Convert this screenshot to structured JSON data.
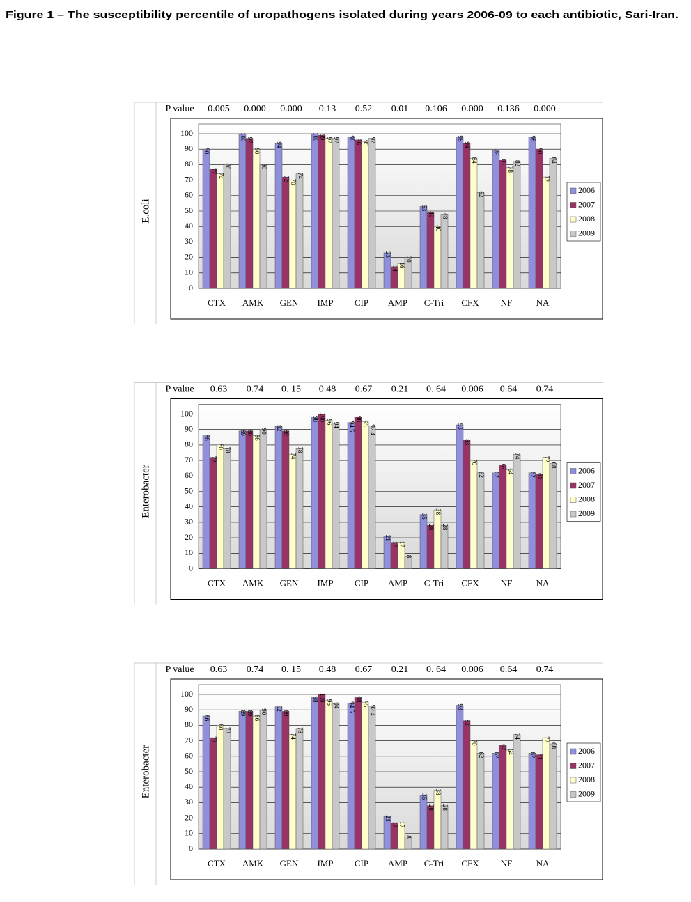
{
  "figure_title": "Figure 1 – The susceptibility percentile of uropathogens isolated during years 2006-09 to each antibiotic, Sari-Iran.",
  "chart_data": [
    {
      "type": "bar",
      "ylabel": "E.coli",
      "p_value_label": "P value",
      "p_values": [
        "0.005",
        "0.000",
        "0.000",
        "0.13",
        "0.52",
        "0.01",
        "0.106",
        "0.000",
        "0.136",
        "0.000"
      ],
      "categories": [
        "CTX",
        "AMK",
        "GEN",
        "IMP",
        "CIP",
        "AMP",
        "C-Tri",
        "CFX",
        "NF",
        "NA"
      ],
      "series": [
        {
          "name": "2006",
          "color": "#8f8fdb",
          "values": [
            90,
            100,
            94,
            100,
            98,
            23,
            53,
            98,
            89,
            98
          ]
        },
        {
          "name": "2007",
          "color": "#993366",
          "values": [
            77,
            97,
            72,
            99,
            96,
            14,
            49,
            94,
            83,
            90
          ]
        },
        {
          "name": "2008",
          "color": "#ffffcc",
          "values": [
            74,
            90,
            70,
            97,
            95,
            16,
            40,
            84,
            78,
            72
          ]
        },
        {
          "name": "2009",
          "color": "#c8c8c8",
          "values": [
            80,
            80,
            74,
            97,
            97,
            20,
            48,
            62,
            82,
            84
          ]
        }
      ],
      "ylim": [
        0,
        100
      ],
      "yticks": [
        0,
        10,
        20,
        30,
        40,
        50,
        60,
        70,
        80,
        90,
        100
      ],
      "grid": true,
      "legend": "right"
    },
    {
      "type": "bar",
      "ylabel": "Enterobacter",
      "p_value_label": "P value",
      "p_values": [
        "0.63",
        "0.74",
        "0. 15",
        "0.48",
        "0.67",
        "0.21",
        "0. 64",
        "0.006",
        "0.64",
        "0.74"
      ],
      "categories": [
        "CTX",
        "AMK",
        "GEN",
        "IMP",
        "CIP",
        "AMP",
        "C-Tri",
        "CFX",
        "NF",
        "NA"
      ],
      "series": [
        {
          "name": "2006",
          "color": "#8f8fdb",
          "values": [
            86,
            89,
            92,
            98,
            94.5,
            21,
            35,
            93,
            62,
            62
          ]
        },
        {
          "name": "2007",
          "color": "#993366",
          "values": [
            72,
            89,
            89,
            100,
            98,
            17,
            28,
            83,
            67,
            61
          ]
        },
        {
          "name": "2008",
          "color": "#ffffcc",
          "values": [
            80,
            86,
            74,
            96,
            95,
            17,
            38,
            70,
            64,
            72
          ]
        },
        {
          "name": "2009",
          "color": "#c8c8c8",
          "values": [
            78,
            90,
            78,
            94,
            92.4,
            8,
            28,
            62,
            74,
            68
          ]
        }
      ],
      "ylim": [
        0,
        100
      ],
      "yticks": [
        0,
        10,
        20,
        30,
        40,
        50,
        60,
        70,
        80,
        90,
        100
      ],
      "grid": true,
      "legend": "right"
    },
    {
      "type": "bar",
      "ylabel": "Enterobacter",
      "p_value_label": "P value",
      "p_values": [
        "0.63",
        "0.74",
        "0. 15",
        "0.48",
        "0.67",
        "0.21",
        "0. 64",
        "0.006",
        "0.64",
        "0.74"
      ],
      "categories": [
        "CTX",
        "AMK",
        "GEN",
        "IMP",
        "CIP",
        "AMP",
        "C-Tri",
        "CFX",
        "NF",
        "NA"
      ],
      "series": [
        {
          "name": "2006",
          "color": "#8f8fdb",
          "values": [
            86,
            89,
            92,
            98,
            94.5,
            21,
            35,
            93,
            62,
            62
          ]
        },
        {
          "name": "2007",
          "color": "#993366",
          "values": [
            72,
            89,
            89,
            100,
            98,
            17,
            28,
            83,
            67,
            61
          ]
        },
        {
          "name": "2008",
          "color": "#ffffcc",
          "values": [
            80,
            86,
            74,
            96,
            95,
            17,
            38,
            70,
            64,
            72
          ]
        },
        {
          "name": "2009",
          "color": "#c8c8c8",
          "values": [
            78,
            90,
            78,
            94,
            92.4,
            8,
            28,
            62,
            74,
            68
          ]
        }
      ],
      "ylim": [
        0,
        100
      ],
      "yticks": [
        0,
        10,
        20,
        30,
        40,
        50,
        60,
        70,
        80,
        90,
        100
      ],
      "grid": true,
      "legend": "right"
    }
  ]
}
